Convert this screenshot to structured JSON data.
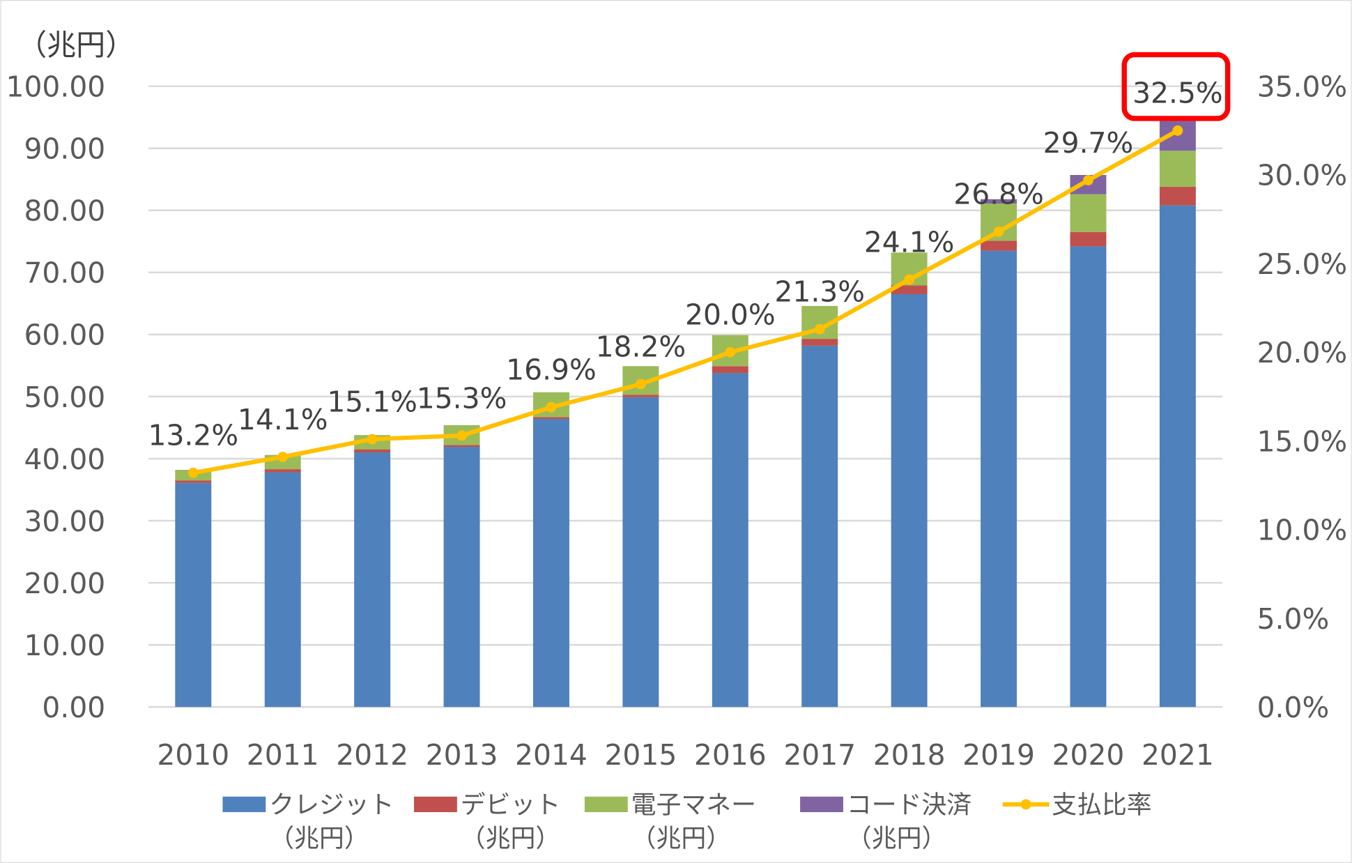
{
  "chart_data": {
    "type": "bar",
    "stacked": true,
    "y_unit_label": "（兆円）",
    "categories": [
      "2010",
      "2011",
      "2012",
      "2013",
      "2014",
      "2015",
      "2016",
      "2017",
      "2018",
      "2019",
      "2020",
      "2021"
    ],
    "ylim": [
      0,
      100
    ],
    "y_ticks": [
      "0.00",
      "10.00",
      "20.00",
      "30.00",
      "40.00",
      "50.00",
      "60.00",
      "70.00",
      "80.00",
      "90.00",
      "100.00"
    ],
    "y2lim": [
      0,
      35
    ],
    "y2_ticks": [
      "0.0%",
      "5.0%",
      "10.0%",
      "15.0%",
      "20.0%",
      "25.0%",
      "30.0%",
      "35.0%"
    ],
    "grid": true,
    "legend_placement": "bottom",
    "series": [
      {
        "name": "クレジット",
        "name_line2": "（兆円）",
        "color": "#4F81BD",
        "values": [
          36.1,
          37.8,
          41.0,
          41.9,
          46.4,
          49.9,
          53.8,
          58.2,
          66.5,
          73.5,
          74.2,
          80.8
        ]
      },
      {
        "name": "デビット",
        "name_line2": "（兆円）",
        "color": "#C0504D",
        "values": [
          0.4,
          0.5,
          0.5,
          0.3,
          0.3,
          0.4,
          1.1,
          1.1,
          1.4,
          1.6,
          2.3,
          3.0
        ]
      },
      {
        "name": "電子マネー",
        "name_line2": "（兆円）",
        "color": "#9BBB59",
        "values": [
          1.7,
          2.3,
          2.3,
          3.2,
          4.0,
          4.6,
          5.0,
          5.3,
          5.3,
          6.0,
          6.1,
          5.8
        ]
      },
      {
        "name": "コード決済",
        "name_line2": "（兆円）",
        "color": "#8064A2",
        "values": [
          0,
          0,
          0,
          0,
          0,
          0,
          0,
          0,
          0,
          0.7,
          3.1,
          4.8
        ]
      }
    ],
    "line_series": {
      "name": "支払比率",
      "color": "#FFC000",
      "axis": "right",
      "values": [
        13.2,
        14.1,
        15.1,
        15.3,
        16.9,
        18.2,
        20.0,
        21.3,
        24.1,
        26.8,
        29.7,
        32.5
      ],
      "labels": [
        "13.2%",
        "14.1%",
        "15.1%",
        "15.3%",
        "16.9%",
        "18.2%",
        "20.0%",
        "21.3%",
        "24.1%",
        "26.8%",
        "29.7%",
        "32.5%"
      ]
    },
    "highlight": {
      "category": "2021",
      "color": "#FF0000"
    }
  }
}
